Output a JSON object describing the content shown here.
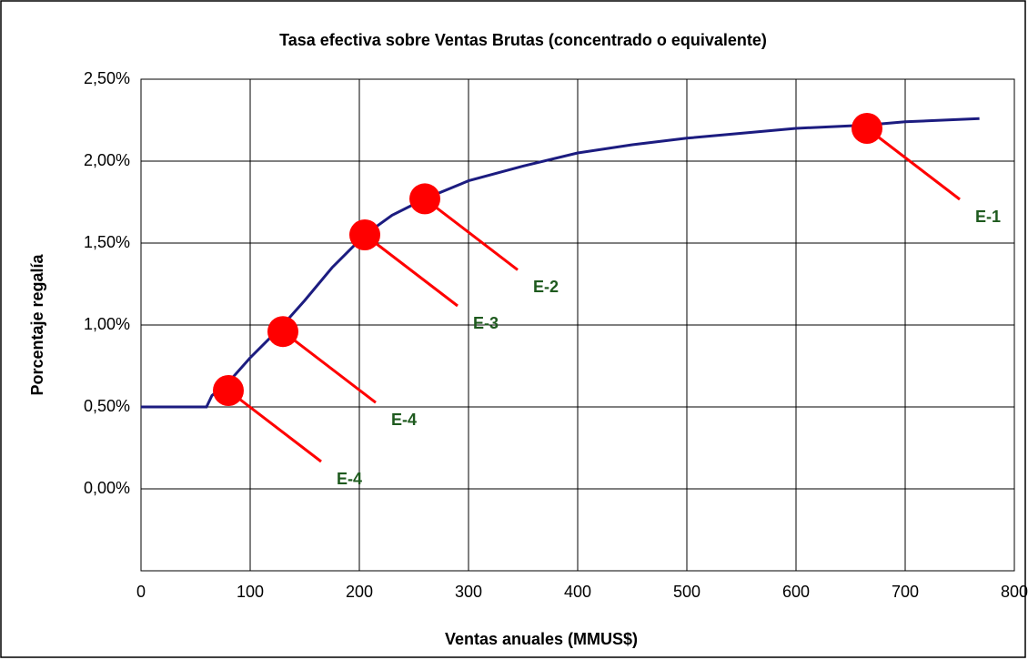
{
  "chart_data": {
    "type": "line",
    "title": "Tasa efectiva sobre Ventas Brutas (concentrado o equivalente)",
    "x_label": "Ventas anuales (MMUS$)",
    "y_label": "Porcentaje  regalía",
    "x": [
      0,
      60,
      65,
      80,
      100,
      130,
      150,
      175,
      205,
      230,
      260,
      300,
      350,
      400,
      450,
      500,
      550,
      600,
      665,
      700,
      768
    ],
    "series": [
      {
        "color": "#1c1c80",
        "values": [
          0.5,
          0.5,
          0.57,
          0.65,
          0.8,
          1.0,
          1.15,
          1.35,
          1.55,
          1.67,
          1.77,
          1.88,
          1.97,
          2.05,
          2.1,
          2.14,
          2.17,
          2.2,
          2.22,
          2.24,
          2.26
        ]
      }
    ],
    "points": {
      "color": "#ff0000",
      "label_color": "#1e5a1e",
      "x": [
        80,
        130,
        205,
        260,
        665
      ],
      "y": [
        0.6,
        0.96,
        1.55,
        1.77,
        2.2
      ],
      "labels": [
        "E-4",
        "E-4",
        "E-3",
        "E-2",
        "E-1"
      ]
    },
    "xlim": [
      0,
      800
    ],
    "xticks": [
      0,
      100,
      200,
      300,
      400,
      500,
      600,
      700,
      800
    ],
    "ylim": [
      -0.5,
      2.5
    ],
    "yticks": [
      {
        "value": 0,
        "label": "0,00%"
      },
      {
        "value": 0.5,
        "label": "0,50%"
      },
      {
        "value": 1,
        "label": "1,00%"
      },
      {
        "value": 1.5,
        "label": "1,50%"
      },
      {
        "value": 2,
        "label": "2,00%"
      },
      {
        "value": 2.5,
        "label": "2,50%"
      }
    ],
    "grid": true
  }
}
